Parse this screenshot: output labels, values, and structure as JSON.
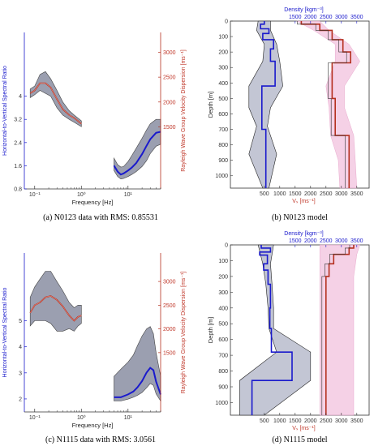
{
  "colors": {
    "blue": "#1a1acc",
    "red": "#b5301f",
    "band_gray": "#7a7f96",
    "band_gray_light": "#b9bccd",
    "band_pink": "#f3c6e0"
  },
  "chart_data": [
    {
      "id": "a",
      "type": "line",
      "caption": "(a) N0123 data with RMS: 0.85531",
      "xlabel": "Frequency [Hz]",
      "ylabel_left": "Horizontal-to-Vertical Spectral Ratio",
      "ylabel_right": "Rayleigh Wave Group Velocity Dispersion [ms⁻¹]",
      "xscale": "log",
      "xlim": [
        0.06,
        50
      ],
      "xticks": [
        "10⁻¹",
        "10⁰",
        "10¹"
      ],
      "ylim_left": [
        0.8,
        6.2
      ],
      "yticks_left": [
        "0.8",
        "1.6",
        "2.4",
        "3.2",
        "4"
      ],
      "ylim_right": [
        250,
        3400
      ],
      "yticks_right": [
        "1500",
        "2000",
        "2500",
        "3000"
      ],
      "hvsr": {
        "x": [
          0.08,
          0.1,
          0.13,
          0.17,
          0.22,
          0.3,
          0.4,
          0.55,
          0.7,
          1.0
        ],
        "mean": [
          4.1,
          4.2,
          4.45,
          4.45,
          4.3,
          3.9,
          3.55,
          3.35,
          3.25,
          3.05
        ],
        "upper": [
          4.25,
          4.35,
          4.75,
          4.85,
          4.6,
          4.2,
          3.8,
          3.5,
          3.35,
          3.15
        ],
        "lower": [
          3.95,
          4.05,
          4.2,
          4.1,
          4.0,
          3.6,
          3.35,
          3.2,
          3.1,
          2.95
        ]
      },
      "dispersion": {
        "x": [
          5,
          6,
          7,
          8,
          10,
          12,
          15,
          20,
          25,
          30,
          40,
          50
        ],
        "mean": [
          720,
          600,
          540,
          560,
          620,
          680,
          770,
          950,
          1120,
          1250,
          1380,
          1400
        ],
        "upper": [
          870,
          740,
          690,
          700,
          800,
          920,
          1070,
          1270,
          1440,
          1560,
          1650,
          1650
        ],
        "lower": [
          620,
          500,
          450,
          460,
          500,
          540,
          600,
          700,
          820,
          960,
          1110,
          1150
        ]
      }
    },
    {
      "id": "b",
      "type": "line",
      "caption": "(b) N0123 model",
      "xlabel_bottom": "Vₛ [ms⁻¹]",
      "xlabel_top": "Density [kgm⁻³]",
      "ylabel": "Depth [m]",
      "xlim_bottom": [
        -600,
        3900
      ],
      "xticks_bottom": [
        "500",
        "1000",
        "1500",
        "2000",
        "2500",
        "3000",
        "3500"
      ],
      "xticks_top": [
        "1500",
        "2000",
        "2500",
        "3000",
        "3500"
      ],
      "ylim": [
        0,
        1080
      ],
      "yticks": [
        "0",
        "100",
        "200",
        "300",
        "400",
        "500",
        "600",
        "700",
        "800",
        "900",
        "1000"
      ],
      "vs_profile": {
        "depth": [
          0,
          20,
          20,
          50,
          50,
          80,
          80,
          120,
          120,
          180,
          180,
          260,
          260,
          420,
          420,
          700,
          700,
          1080
        ],
        "vs": [
          500,
          500,
          380,
          380,
          650,
          650,
          450,
          450,
          800,
          800,
          700,
          700,
          850,
          850,
          420,
          420,
          550,
          550
        ]
      },
      "vs_band": {
        "depth": [
          0,
          60,
          150,
          260,
          420,
          560,
          680,
          860,
          1080
        ],
        "lower": [
          300,
          250,
          500,
          450,
          0,
          0,
          250,
          0,
          450
        ],
        "upper": [
          700,
          700,
          900,
          1000,
          1100,
          700,
          600,
          900,
          650
        ]
      },
      "density_profile": {
        "depth": [
          0,
          20,
          20,
          60,
          60,
          120,
          120,
          200,
          200,
          270,
          270,
          500,
          500,
          740,
          740,
          1080
        ],
        "density": [
          1700,
          1700,
          2300,
          2300,
          2700,
          2700,
          3050,
          3050,
          3300,
          3300,
          2700,
          2700,
          2800,
          2800,
          3250,
          3250
        ]
      },
      "density_band": {
        "depth": [
          0,
          60,
          150,
          260,
          420,
          560,
          740,
          900,
          1080
        ],
        "lower": [
          1550,
          2100,
          2800,
          2800,
          2500,
          2600,
          2650,
          2900,
          2950
        ],
        "upper": [
          2300,
          2600,
          3250,
          3600,
          3100,
          3100,
          3400,
          3450,
          3500
        ]
      }
    },
    {
      "id": "c",
      "type": "line",
      "caption": "(c) N1115 data with RMS: 3.0561",
      "xlabel": "Frequency [Hz]",
      "ylabel_left": "Horizontal-to-Vertical Spectral Ratio",
      "ylabel_right": "Rayleigh Wave Group Velocity Dispersion [ms⁻¹]",
      "xscale": "log",
      "xlim": [
        0.06,
        50
      ],
      "xticks": [
        "10⁻¹",
        "10⁰",
        "10¹"
      ],
      "ylim_left": [
        1.5,
        7.6
      ],
      "yticks_left": [
        "2",
        "3",
        "4",
        "5"
      ],
      "ylim_right": [
        250,
        3600
      ],
      "yticks_right": [
        "1500",
        "2000",
        "2500",
        "3000"
      ],
      "hvsr": {
        "x": [
          0.08,
          0.1,
          0.13,
          0.17,
          0.22,
          0.3,
          0.4,
          0.55,
          0.7,
          0.85,
          1.0
        ],
        "mean": [
          5.3,
          5.6,
          5.7,
          5.9,
          5.95,
          5.8,
          5.55,
          5.2,
          5.0,
          5.15,
          5.2
        ],
        "upper": [
          5.9,
          6.3,
          6.6,
          6.9,
          6.9,
          6.5,
          6.15,
          5.7,
          5.5,
          5.6,
          5.6
        ],
        "lower": [
          4.8,
          5.0,
          5.0,
          5.0,
          4.9,
          4.6,
          4.6,
          4.7,
          4.6,
          4.8,
          4.9
        ]
      },
      "dispersion": {
        "x": [
          5,
          7,
          10,
          13,
          16,
          20,
          25,
          30,
          35,
          40,
          50
        ],
        "mean": [
          560,
          560,
          620,
          680,
          770,
          900,
          1080,
          1180,
          1130,
          890,
          620
        ],
        "upper": [
          1000,
          1150,
          1300,
          1450,
          1650,
          1850,
          2000,
          2050,
          1900,
          1500,
          1000
        ],
        "lower": [
          480,
          480,
          520,
          560,
          600,
          660,
          760,
          850,
          810,
          630,
          480
        ]
      }
    },
    {
      "id": "d",
      "type": "line",
      "caption": "(d) N1115 model",
      "xlabel_bottom": "Vₛ [ms⁻¹]",
      "xlabel_top": "Density [kgm⁻³]",
      "ylabel": "Depth [m]",
      "xlim_bottom": [
        -600,
        3900
      ],
      "xticks_bottom": [
        "500",
        "1000",
        "1500",
        "2000",
        "2500",
        "3000",
        "3500"
      ],
      "xticks_top": [
        "1500",
        "2000",
        "2500",
        "3000",
        "3500"
      ],
      "ylim": [
        0,
        1080
      ],
      "yticks": [
        "0",
        "100",
        "200",
        "300",
        "400",
        "500",
        "600",
        "700",
        "800",
        "900",
        "1000"
      ],
      "vs_profile": {
        "depth": [
          0,
          20,
          20,
          45,
          45,
          65,
          65,
          120,
          120,
          160,
          160,
          250,
          250,
          400,
          400,
          530,
          530,
          680,
          680,
          860,
          860,
          1080
        ],
        "vs": [
          400,
          400,
          700,
          700,
          350,
          350,
          600,
          600,
          480,
          480,
          620,
          620,
          700,
          700,
          680,
          680,
          730,
          730,
          1400,
          1400,
          100,
          100
        ]
      },
      "vs_band": {
        "depth": [
          0,
          120,
          250,
          400,
          530,
          680,
          860,
          1080
        ],
        "lower": [
          300,
          450,
          550,
          620,
          650,
          900,
          -300,
          -300
        ],
        "upper": [
          800,
          700,
          750,
          800,
          800,
          2000,
          2000,
          500
        ]
      },
      "density_profile": {
        "depth": [
          0,
          20,
          20,
          60,
          60,
          120,
          120,
          200,
          200,
          1080
        ],
        "density": [
          3400,
          3400,
          3250,
          3250,
          2750,
          2750,
          2600,
          2600,
          2500,
          2500
        ]
      },
      "density_band": {
        "depth": [
          0,
          60,
          200,
          1080
        ],
        "lower": [
          2300,
          2300,
          2300,
          2300
        ],
        "upper": [
          3600,
          3500,
          3400,
          3400
        ]
      }
    }
  ]
}
